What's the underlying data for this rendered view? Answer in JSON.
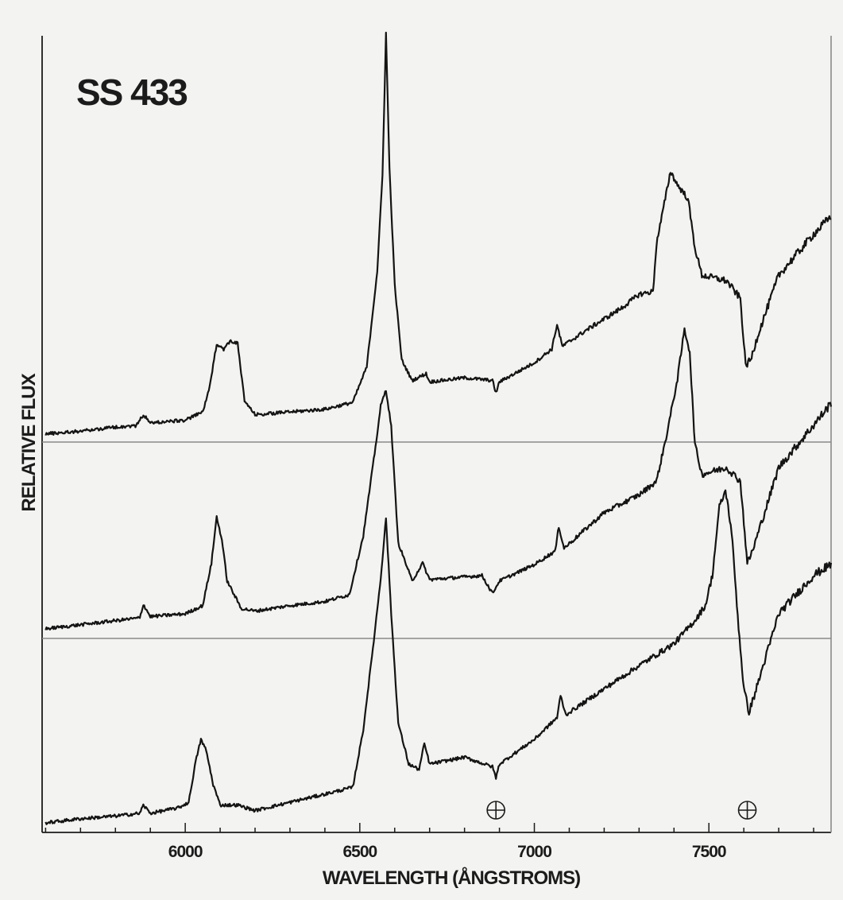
{
  "chart_data": {
    "type": "line",
    "title": "SS 433",
    "xlabel": "WAVELENGTH (ÅNGSTROMS)",
    "ylabel": "RELATIVE FLUX",
    "xlim": [
      5590,
      7850
    ],
    "x_ticks": [
      6000,
      6500,
      7000,
      7500
    ],
    "x_tick_labels": [
      "6000",
      "6500",
      "7000",
      "7500"
    ],
    "grid": false,
    "legend": "none",
    "colors": {
      "line": "#141414",
      "baseline": "#8a8a8a",
      "background": "#f3f3f1"
    },
    "telluric_markers": {
      "symbol": "⊕",
      "x": [
        6890,
        7610
      ]
    },
    "series": [
      {
        "points": [
          [
            5600,
            0.06
          ],
          [
            5700,
            0.08
          ],
          [
            5800,
            0.11
          ],
          [
            5860,
            0.12
          ],
          [
            5880,
            0.2
          ],
          [
            5900,
            0.14
          ],
          [
            6000,
            0.16
          ],
          [
            6050,
            0.22
          ],
          [
            6070,
            0.4
          ],
          [
            6090,
            0.72
          ],
          [
            6110,
            0.68
          ],
          [
            6130,
            0.74
          ],
          [
            6150,
            0.72
          ],
          [
            6170,
            0.3
          ],
          [
            6200,
            0.2
          ],
          [
            6300,
            0.22
          ],
          [
            6400,
            0.24
          ],
          [
            6480,
            0.29
          ],
          [
            6520,
            0.55
          ],
          [
            6550,
            1.25
          ],
          [
            6565,
            1.95
          ],
          [
            6575,
            2.99
          ],
          [
            6585,
            2.0
          ],
          [
            6600,
            1.15
          ],
          [
            6620,
            0.6
          ],
          [
            6650,
            0.45
          ],
          [
            6690,
            0.5
          ],
          [
            6700,
            0.44
          ],
          [
            6800,
            0.47
          ],
          [
            6880,
            0.45
          ],
          [
            6890,
            0.36
          ],
          [
            6900,
            0.44
          ],
          [
            7000,
            0.58
          ],
          [
            7050,
            0.68
          ],
          [
            7065,
            0.86
          ],
          [
            7080,
            0.7
          ],
          [
            7150,
            0.82
          ],
          [
            7250,
            0.98
          ],
          [
            7300,
            1.08
          ],
          [
            7340,
            1.1
          ],
          [
            7350,
            1.45
          ],
          [
            7375,
            1.78
          ],
          [
            7390,
            1.98
          ],
          [
            7410,
            1.88
          ],
          [
            7440,
            1.78
          ],
          [
            7460,
            1.42
          ],
          [
            7480,
            1.22
          ],
          [
            7550,
            1.18
          ],
          [
            7590,
            1.05
          ],
          [
            7605,
            0.56
          ],
          [
            7620,
            0.6
          ],
          [
            7640,
            0.78
          ],
          [
            7700,
            1.22
          ],
          [
            7800,
            1.52
          ],
          [
            7850,
            1.65
          ]
        ]
      },
      {
        "points": [
          [
            5600,
            0.07
          ],
          [
            5700,
            0.1
          ],
          [
            5800,
            0.13
          ],
          [
            5870,
            0.15
          ],
          [
            5880,
            0.25
          ],
          [
            5900,
            0.16
          ],
          [
            6000,
            0.18
          ],
          [
            6050,
            0.24
          ],
          [
            6075,
            0.55
          ],
          [
            6090,
            0.89
          ],
          [
            6105,
            0.72
          ],
          [
            6120,
            0.42
          ],
          [
            6140,
            0.32
          ],
          [
            6160,
            0.22
          ],
          [
            6200,
            0.2
          ],
          [
            6300,
            0.24
          ],
          [
            6400,
            0.27
          ],
          [
            6470,
            0.32
          ],
          [
            6510,
            0.75
          ],
          [
            6545,
            1.4
          ],
          [
            6560,
            1.7
          ],
          [
            6575,
            1.82
          ],
          [
            6590,
            1.55
          ],
          [
            6610,
            0.7
          ],
          [
            6650,
            0.42
          ],
          [
            6680,
            0.55
          ],
          [
            6700,
            0.43
          ],
          [
            6850,
            0.46
          ],
          [
            6880,
            0.33
          ],
          [
            6900,
            0.42
          ],
          [
            7000,
            0.54
          ],
          [
            7060,
            0.64
          ],
          [
            7070,
            0.82
          ],
          [
            7085,
            0.66
          ],
          [
            7200,
            0.92
          ],
          [
            7300,
            1.05
          ],
          [
            7350,
            1.15
          ],
          [
            7380,
            1.5
          ],
          [
            7410,
            1.9
          ],
          [
            7430,
            2.26
          ],
          [
            7445,
            2.1
          ],
          [
            7460,
            1.42
          ],
          [
            7480,
            1.2
          ],
          [
            7550,
            1.25
          ],
          [
            7590,
            1.15
          ],
          [
            7610,
            0.55
          ],
          [
            7625,
            0.64
          ],
          [
            7700,
            1.25
          ],
          [
            7800,
            1.56
          ],
          [
            7850,
            1.72
          ]
        ]
      },
      {
        "points": [
          [
            5600,
            0.07
          ],
          [
            5700,
            0.1
          ],
          [
            5800,
            0.12
          ],
          [
            5870,
            0.14
          ],
          [
            5880,
            0.2
          ],
          [
            5900,
            0.14
          ],
          [
            5980,
            0.18
          ],
          [
            6010,
            0.22
          ],
          [
            6030,
            0.52
          ],
          [
            6045,
            0.68
          ],
          [
            6060,
            0.6
          ],
          [
            6080,
            0.35
          ],
          [
            6100,
            0.2
          ],
          [
            6150,
            0.2
          ],
          [
            6200,
            0.16
          ],
          [
            6300,
            0.22
          ],
          [
            6400,
            0.28
          ],
          [
            6480,
            0.33
          ],
          [
            6510,
            0.75
          ],
          [
            6540,
            1.4
          ],
          [
            6560,
            1.86
          ],
          [
            6575,
            2.3
          ],
          [
            6590,
            1.6
          ],
          [
            6610,
            0.8
          ],
          [
            6640,
            0.5
          ],
          [
            6670,
            0.46
          ],
          [
            6685,
            0.65
          ],
          [
            6700,
            0.5
          ],
          [
            6800,
            0.55
          ],
          [
            6880,
            0.48
          ],
          [
            6890,
            0.4
          ],
          [
            6900,
            0.5
          ],
          [
            7000,
            0.68
          ],
          [
            7065,
            0.84
          ],
          [
            7075,
            1.0
          ],
          [
            7090,
            0.86
          ],
          [
            7200,
            1.05
          ],
          [
            7300,
            1.22
          ],
          [
            7400,
            1.38
          ],
          [
            7460,
            1.55
          ],
          [
            7490,
            1.66
          ],
          [
            7510,
            1.88
          ],
          [
            7530,
            2.38
          ],
          [
            7548,
            2.5
          ],
          [
            7565,
            2.2
          ],
          [
            7585,
            1.5
          ],
          [
            7600,
            1.05
          ],
          [
            7615,
            0.88
          ],
          [
            7630,
            1.0
          ],
          [
            7700,
            1.6
          ],
          [
            7800,
            1.88
          ],
          [
            7850,
            1.96
          ]
        ]
      }
    ]
  }
}
